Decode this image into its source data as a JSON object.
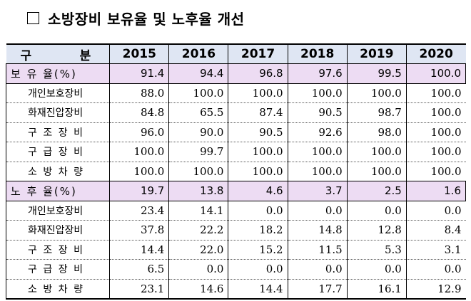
{
  "heading": {
    "title": "소방장비 보유율 및 노후율 개선"
  },
  "table": {
    "header_label_left": "구",
    "header_label_right": "분",
    "years": [
      "2015",
      "2016",
      "2017",
      "2018",
      "2019",
      "2020"
    ],
    "sections": [
      {
        "label": "보 유 율(%)",
        "values": [
          "91.4",
          "94.4",
          "96.8",
          "97.6",
          "99.5",
          "100.0"
        ],
        "rows": [
          {
            "label": "개인보호장비",
            "values": [
              "88.0",
              "100.0",
              "100.0",
              "100.0",
              "100.0",
              "100.0"
            ]
          },
          {
            "label": "화재진압장비",
            "values": [
              "84.8",
              "65.5",
              "87.4",
              "90.5",
              "98.7",
              "100.0"
            ]
          },
          {
            "label": "구조장비",
            "values": [
              "96.0",
              "90.0",
              "90.5",
              "92.6",
              "98.0",
              "100.0"
            ]
          },
          {
            "label": "구급장비",
            "values": [
              "100.0",
              "99.7",
              "100.0",
              "100.0",
              "100.0",
              "100.0"
            ]
          },
          {
            "label": "소방차량",
            "values": [
              "100.0",
              "100.0",
              "100.0",
              "100.0",
              "100.0",
              "100.0"
            ]
          }
        ]
      },
      {
        "label": "노 후 율(%)",
        "values": [
          "19.7",
          "13.8",
          "4.6",
          "3.7",
          "2.5",
          "1.6"
        ],
        "rows": [
          {
            "label": "개인보호장비",
            "values": [
              "23.4",
              "14.1",
              "0.0",
              "0.0",
              "0.0",
              "0.0"
            ]
          },
          {
            "label": "화재진압장비",
            "values": [
              "37.8",
              "22.2",
              "18.2",
              "14.8",
              "12.8",
              "8.4"
            ]
          },
          {
            "label": "구조장비",
            "values": [
              "14.4",
              "22.0",
              "15.2",
              "11.5",
              "5.3",
              "3.1"
            ]
          },
          {
            "label": "구급장비",
            "values": [
              "6.5",
              "0.0",
              "0.0",
              "0.0",
              "0.0",
              "0.0"
            ]
          },
          {
            "label": "소방차량",
            "values": [
              "23.1",
              "14.6",
              "14.4",
              "17.7",
              "16.1",
              "12.9"
            ]
          }
        ]
      }
    ]
  }
}
